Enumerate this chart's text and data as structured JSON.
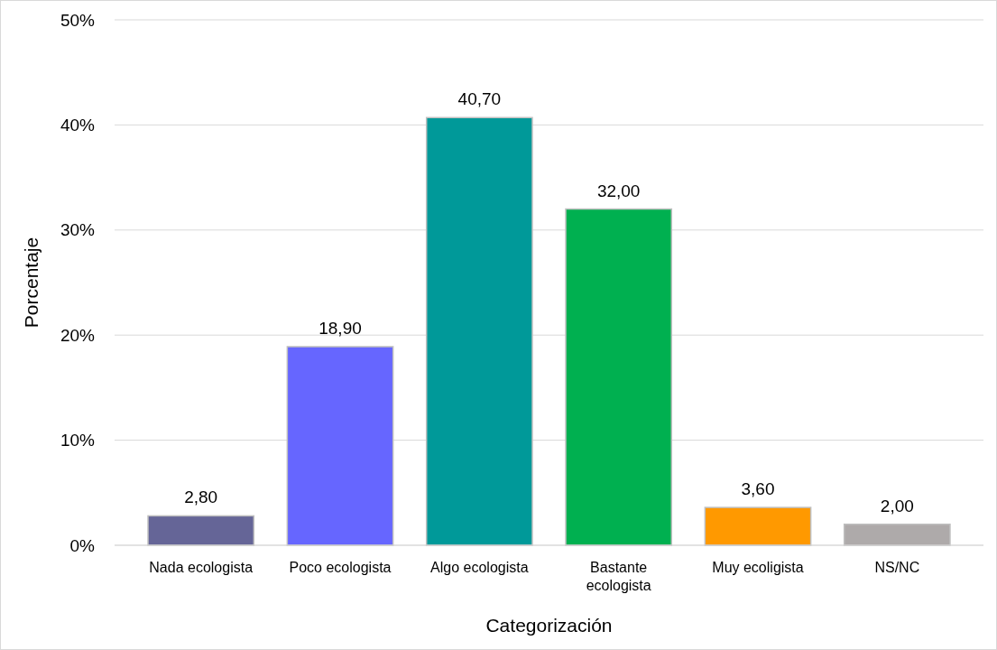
{
  "chart_data": {
    "type": "bar",
    "xlabel": "Categorización",
    "ylabel": "Porcentaje",
    "categories": [
      "Nada ecologista",
      "Poco ecologista",
      "Algo ecologista",
      "Bastante ecologista",
      "Muy ecoligista",
      "NS/NC"
    ],
    "values": [
      2.8,
      18.9,
      40.7,
      32.0,
      3.6,
      2.0
    ],
    "value_labels": [
      "2,80",
      "18,90",
      "40,70",
      "32,00",
      "3,60",
      "2,00"
    ],
    "colors": [
      "#656597",
      "#6666ff",
      "#009999",
      "#00b050",
      "#ff9900",
      "#aeaaaa"
    ],
    "ylim": [
      0,
      50
    ],
    "yticks": [
      {
        "value": 0,
        "label": "0%"
      },
      {
        "value": 10,
        "label": "10%"
      },
      {
        "value": 20,
        "label": "20%"
      },
      {
        "value": 30,
        "label": "30%"
      },
      {
        "value": 40,
        "label": "40%"
      },
      {
        "value": 50,
        "label": "50%"
      }
    ],
    "grid": "y"
  }
}
